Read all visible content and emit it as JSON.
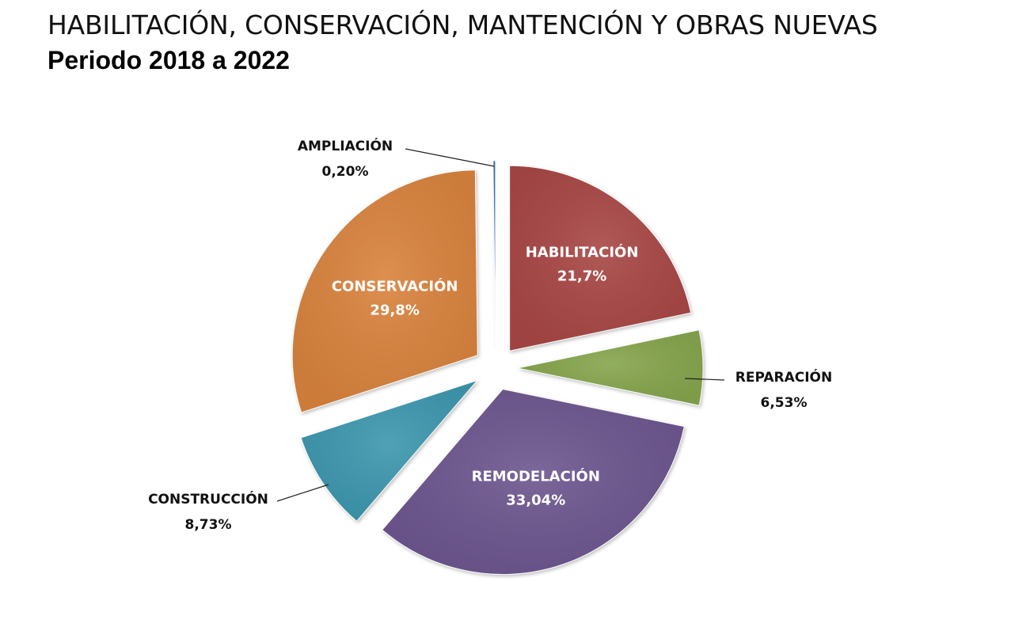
{
  "title": "HABILITACIÓN, CONSERVACIÓN, MANTENCIÓN Y OBRAS NUEVAS",
  "subtitle": "Periodo 2018 a 2022",
  "chart_data": {
    "type": "pie",
    "title": "HABILITACIÓN, CONSERVACIÓN, MANTENCIÓN Y OBRAS NUEVAS",
    "subtitle": "Periodo 2018 a 2022",
    "exploded": true,
    "slices": [
      {
        "name": "HABILITACIÓN",
        "value": 21.7,
        "label": "21,7%",
        "color": "#a84644",
        "label_position": "inside"
      },
      {
        "name": "REPARACIÓN",
        "value": 6.53,
        "label": "6,53%",
        "color": "#86a54d",
        "label_position": "outside"
      },
      {
        "name": "REMODELACIÓN",
        "value": 33.04,
        "label": "33,04%",
        "color": "#6d568f",
        "label_position": "inside"
      },
      {
        "name": "CONSTRUCCIÓN",
        "value": 8.73,
        "label": "8,73%",
        "color": "#3e97ae",
        "label_position": "outside"
      },
      {
        "name": "CONSERVACIÓN",
        "value": 29.8,
        "label": "29,8%",
        "color": "#d9833c",
        "label_position": "inside"
      },
      {
        "name": "AMPLIACIÓN",
        "value": 0.2,
        "label": "0,20%",
        "color": "#3b6da8",
        "label_position": "outside"
      }
    ]
  }
}
